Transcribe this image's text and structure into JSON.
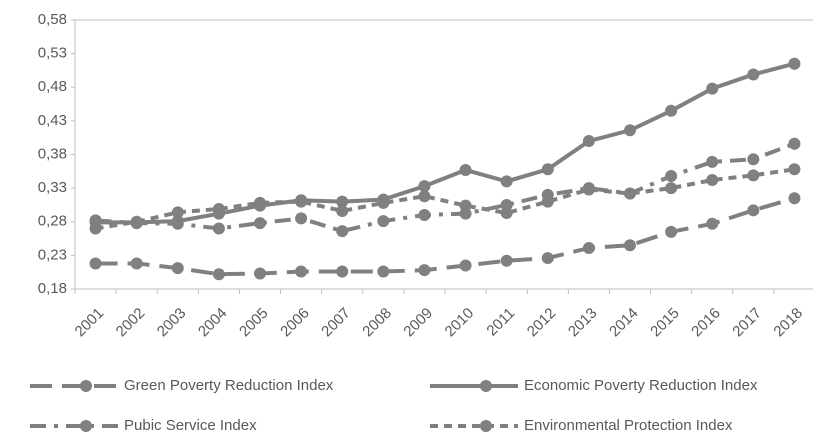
{
  "chart_data": {
    "type": "line",
    "categories": [
      "2001",
      "2002",
      "2003",
      "2004",
      "2005",
      "2006",
      "2007",
      "2008",
      "2009",
      "2010",
      "2011",
      "2012",
      "2013",
      "2014",
      "2015",
      "2016",
      "2017",
      "2018"
    ],
    "series": [
      {
        "name": "Green Poverty Reduction Index",
        "color": "#808080",
        "dash": "long",
        "values": [
          0.218,
          0.218,
          0.211,
          0.202,
          0.203,
          0.206,
          0.206,
          0.206,
          0.208,
          0.215,
          0.222,
          0.226,
          0.241,
          0.245,
          0.265,
          0.277,
          0.297,
          0.315
        ]
      },
      {
        "name": "Economic Poverty Reduction Index",
        "color": "#808080",
        "dash": "solid",
        "values": [
          0.279,
          0.279,
          0.281,
          0.292,
          0.304,
          0.312,
          0.31,
          0.313,
          0.333,
          0.357,
          0.34,
          0.358,
          0.4,
          0.416,
          0.445,
          0.478,
          0.499,
          0.515
        ]
      },
      {
        "name": "Pubic Service Index",
        "color": "#808080",
        "dash": "dashdot",
        "values": [
          0.282,
          0.278,
          0.277,
          0.27,
          0.278,
          0.285,
          0.266,
          0.281,
          0.29,
          0.292,
          0.305,
          0.32,
          0.33,
          0.322,
          0.348,
          0.369,
          0.373,
          0.396
        ]
      },
      {
        "name": "Environmental Protection Index",
        "color": "#808080",
        "dash": "short",
        "values": [
          0.27,
          0.28,
          0.294,
          0.299,
          0.308,
          0.31,
          0.296,
          0.308,
          0.318,
          0.304,
          0.293,
          0.31,
          0.328,
          0.322,
          0.33,
          0.342,
          0.349,
          0.358
        ]
      }
    ],
    "ylim": [
      0.18,
      0.58
    ],
    "yticks": [
      {
        "value": 0.18,
        "label": "0,18"
      },
      {
        "value": 0.23,
        "label": "0,23"
      },
      {
        "value": 0.28,
        "label": "0,28"
      },
      {
        "value": 0.33,
        "label": "0,33"
      },
      {
        "value": 0.38,
        "label": "0,38"
      },
      {
        "value": 0.43,
        "label": "0,43"
      },
      {
        "value": 0.48,
        "label": "0,48"
      },
      {
        "value": 0.53,
        "label": "0,53"
      },
      {
        "value": 0.58,
        "label": "0,58"
      }
    ],
    "grid": false
  }
}
